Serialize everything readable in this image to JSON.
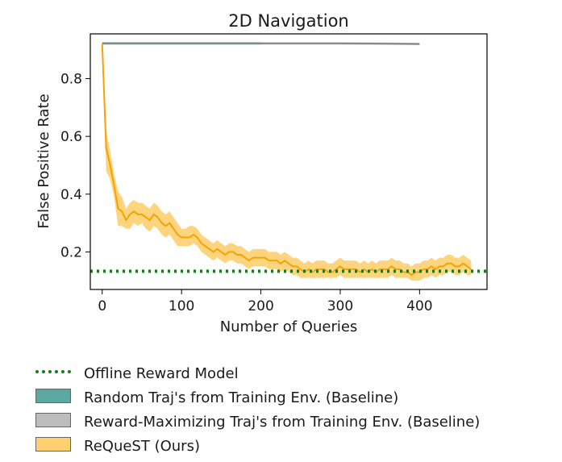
{
  "chart_data": {
    "type": "line",
    "title": "2D Navigation",
    "xlabel": "Number of Queries",
    "ylabel": "False Positive Rate",
    "xlim": [
      -15,
      485
    ],
    "ylim": [
      0.07,
      0.955
    ],
    "xticks": [
      0,
      100,
      200,
      300,
      400
    ],
    "yticks": [
      0.2,
      0.4,
      0.6,
      0.8
    ],
    "xtick_labels": [
      "0",
      "100",
      "200",
      "300",
      "400"
    ],
    "ytick_labels": [
      "0.2",
      "0.4",
      "0.6",
      "0.8"
    ],
    "grid": false,
    "legend_position": "below",
    "hline": {
      "name": "Offline Reward Model",
      "y": 0.133,
      "color": "#1a7a1a",
      "style": "dotted"
    },
    "series": [
      {
        "name": "Random Traj's from Training Env. (Baseline)",
        "color": "#5aa8a0",
        "line_color": "#3f8f88",
        "x": [
          0,
          200
        ],
        "y": [
          0.922,
          0.922
        ],
        "lower": [
          0.918,
          0.918
        ],
        "upper": [
          0.926,
          0.926
        ]
      },
      {
        "name": "Reward-Maximizing Traj's from Training Env. (Baseline)",
        "color": "#aaaaaa",
        "line_color": "#888888",
        "x": [
          0,
          100,
          200,
          300,
          360,
          400
        ],
        "y": [
          0.922,
          0.922,
          0.922,
          0.922,
          0.921,
          0.92
        ],
        "lower": [
          0.918,
          0.918,
          0.918,
          0.918,
          0.917,
          0.916
        ],
        "upper": [
          0.926,
          0.926,
          0.926,
          0.926,
          0.925,
          0.924
        ]
      },
      {
        "name": "ReQueST (Ours)",
        "color": "#ffc247",
        "line_color": "#f5a300",
        "x": [
          0,
          5,
          10,
          15,
          20,
          25,
          30,
          35,
          40,
          45,
          50,
          55,
          60,
          65,
          70,
          75,
          80,
          85,
          90,
          95,
          100,
          105,
          110,
          115,
          120,
          125,
          130,
          135,
          140,
          145,
          150,
          155,
          160,
          165,
          170,
          175,
          180,
          185,
          190,
          195,
          200,
          205,
          210,
          215,
          220,
          225,
          230,
          235,
          240,
          245,
          250,
          255,
          260,
          265,
          270,
          275,
          280,
          285,
          290,
          295,
          300,
          305,
          310,
          315,
          320,
          325,
          330,
          335,
          340,
          345,
          350,
          355,
          360,
          365,
          370,
          375,
          380,
          385,
          390,
          395,
          400,
          405,
          410,
          415,
          420,
          425,
          430,
          435,
          440,
          445,
          450,
          455,
          460,
          465
        ],
        "y": [
          0.92,
          0.56,
          0.5,
          0.43,
          0.35,
          0.34,
          0.31,
          0.33,
          0.34,
          0.33,
          0.33,
          0.32,
          0.31,
          0.33,
          0.32,
          0.3,
          0.29,
          0.3,
          0.28,
          0.26,
          0.25,
          0.25,
          0.25,
          0.26,
          0.25,
          0.23,
          0.22,
          0.21,
          0.2,
          0.21,
          0.2,
          0.19,
          0.2,
          0.2,
          0.19,
          0.19,
          0.18,
          0.17,
          0.18,
          0.18,
          0.18,
          0.18,
          0.17,
          0.17,
          0.17,
          0.16,
          0.17,
          0.16,
          0.15,
          0.15,
          0.14,
          0.13,
          0.14,
          0.13,
          0.14,
          0.14,
          0.14,
          0.13,
          0.13,
          0.14,
          0.15,
          0.14,
          0.14,
          0.14,
          0.14,
          0.13,
          0.14,
          0.13,
          0.14,
          0.13,
          0.14,
          0.14,
          0.14,
          0.15,
          0.14,
          0.14,
          0.13,
          0.13,
          0.12,
          0.13,
          0.13,
          0.14,
          0.14,
          0.15,
          0.14,
          0.15,
          0.15,
          0.16,
          0.16,
          0.15,
          0.15,
          0.16,
          0.15,
          0.14
        ],
        "lower": [
          0.91,
          0.48,
          0.45,
          0.39,
          0.29,
          0.29,
          0.28,
          0.28,
          0.3,
          0.29,
          0.3,
          0.28,
          0.27,
          0.29,
          0.28,
          0.26,
          0.25,
          0.26,
          0.24,
          0.22,
          0.22,
          0.22,
          0.22,
          0.23,
          0.22,
          0.2,
          0.19,
          0.18,
          0.17,
          0.18,
          0.17,
          0.16,
          0.17,
          0.17,
          0.16,
          0.16,
          0.15,
          0.14,
          0.15,
          0.15,
          0.15,
          0.15,
          0.14,
          0.14,
          0.14,
          0.13,
          0.14,
          0.13,
          0.12,
          0.12,
          0.11,
          0.11,
          0.11,
          0.11,
          0.11,
          0.11,
          0.11,
          0.11,
          0.11,
          0.11,
          0.12,
          0.11,
          0.11,
          0.11,
          0.11,
          0.11,
          0.11,
          0.11,
          0.11,
          0.11,
          0.11,
          0.11,
          0.11,
          0.12,
          0.11,
          0.11,
          0.11,
          0.11,
          0.1,
          0.1,
          0.1,
          0.11,
          0.11,
          0.12,
          0.11,
          0.12,
          0.12,
          0.13,
          0.13,
          0.12,
          0.12,
          0.13,
          0.12,
          0.12
        ],
        "upper": [
          0.93,
          0.62,
          0.55,
          0.47,
          0.41,
          0.39,
          0.35,
          0.37,
          0.38,
          0.37,
          0.37,
          0.36,
          0.35,
          0.37,
          0.36,
          0.34,
          0.33,
          0.34,
          0.32,
          0.3,
          0.28,
          0.28,
          0.29,
          0.29,
          0.28,
          0.26,
          0.25,
          0.24,
          0.23,
          0.24,
          0.23,
          0.22,
          0.23,
          0.23,
          0.22,
          0.22,
          0.21,
          0.2,
          0.21,
          0.21,
          0.21,
          0.21,
          0.2,
          0.2,
          0.2,
          0.19,
          0.2,
          0.19,
          0.18,
          0.18,
          0.17,
          0.16,
          0.17,
          0.16,
          0.17,
          0.17,
          0.17,
          0.16,
          0.16,
          0.17,
          0.18,
          0.17,
          0.17,
          0.17,
          0.17,
          0.16,
          0.17,
          0.16,
          0.17,
          0.16,
          0.17,
          0.17,
          0.17,
          0.18,
          0.17,
          0.17,
          0.16,
          0.16,
          0.15,
          0.16,
          0.16,
          0.17,
          0.17,
          0.18,
          0.17,
          0.18,
          0.18,
          0.19,
          0.19,
          0.18,
          0.18,
          0.19,
          0.18,
          0.17
        ]
      }
    ]
  },
  "legend": {
    "items": [
      {
        "label": "Offline Reward Model"
      },
      {
        "label": "Random Traj's from Training Env. (Baseline)"
      },
      {
        "label": "Reward-Maximizing Traj's from Training Env. (Baseline)"
      },
      {
        "label": "ReQueST (Ours)"
      }
    ]
  }
}
